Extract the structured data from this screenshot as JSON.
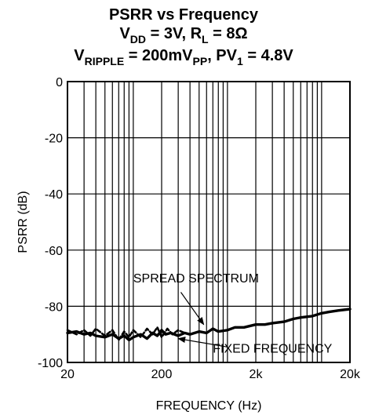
{
  "chart_data": {
    "type": "line",
    "title_lines": [
      {
        "parts": [
          {
            "t": "PSRR vs Frequency"
          }
        ]
      },
      {
        "parts": [
          {
            "t": "V"
          },
          {
            "t": "DD",
            "sub": true
          },
          {
            "t": " = 3V, R"
          },
          {
            "t": "L",
            "sub": true
          },
          {
            "t": " = 8Ω"
          }
        ]
      },
      {
        "parts": [
          {
            "t": "V"
          },
          {
            "t": "RIPPLE",
            "sub": true
          },
          {
            "t": " = 200mV"
          },
          {
            "t": "PP",
            "sub": true
          },
          {
            "t": ", PV"
          },
          {
            "t": "1",
            "sub": true
          },
          {
            "t": " = 4.8V"
          }
        ]
      }
    ],
    "xlabel": "FREQUENCY (Hz)",
    "ylabel": "PSRR (dB)",
    "x_scale": "log",
    "xlim": [
      20,
      20000
    ],
    "ylim": [
      -100,
      0
    ],
    "x_ticks": [
      {
        "value": 20,
        "label": "20"
      },
      {
        "value": 200,
        "label": "200"
      },
      {
        "value": 2000,
        "label": "2k"
      },
      {
        "value": 20000,
        "label": "20k"
      }
    ],
    "y_ticks": [
      {
        "value": 0,
        "label": "0"
      },
      {
        "value": -20,
        "label": "-20"
      },
      {
        "value": -40,
        "label": "-40"
      },
      {
        "value": -60,
        "label": "-60"
      },
      {
        "value": -80,
        "label": "-80"
      },
      {
        "value": -100,
        "label": "-100"
      }
    ],
    "grid": true,
    "series": [
      {
        "style": "solid",
        "x": [
          20,
          25,
          30,
          35,
          40,
          50,
          60,
          70,
          80,
          90,
          100,
          120,
          140,
          160,
          180,
          200,
          220,
          250,
          300,
          350,
          400,
          500,
          600,
          700,
          800,
          1000,
          1200,
          1500,
          2000,
          2500,
          3000,
          4000,
          5000,
          6000,
          8000,
          10000,
          12000,
          15000,
          20000
        ],
        "y": [
          -89.5,
          -89,
          -90,
          -89.5,
          -90.5,
          -91,
          -90,
          -91.5,
          -90.5,
          -92,
          -91,
          -90,
          -91.5,
          -89.5,
          -90.5,
          -88.5,
          -90,
          -89.5,
          -90.5,
          -89.5,
          -90,
          -89,
          -89.5,
          -88,
          -89,
          -88.5,
          -87.5,
          -87.5,
          -86.5,
          -86.5,
          -86,
          -85.5,
          -84.5,
          -84,
          -83.5,
          -82.5,
          -82,
          -81.5,
          -81
        ]
      },
      {
        "style": "dashed",
        "x": [
          20,
          25,
          30,
          35,
          40,
          50,
          60,
          70,
          80,
          90,
          100,
          120,
          140,
          160,
          180,
          200,
          230,
          260,
          300,
          350
        ],
        "y": [
          -88.5,
          -90,
          -88.5,
          -90.5,
          -88,
          -90.5,
          -88.5,
          -92,
          -89,
          -91,
          -88.5,
          -91,
          -88,
          -90,
          -87.5,
          -91,
          -88,
          -90,
          -88.5,
          -89.5
        ]
      }
    ],
    "annotations": [
      {
        "text": "SPREAD SPECTRUM",
        "text_at": [
          100,
          -71.5
        ],
        "arrow_from": [
          320,
          -75
        ],
        "arrow_to": [
          560,
          -86.5
        ]
      },
      {
        "text": "FIXED FREQUENCY",
        "text_at": [
          700,
          -96.5
        ],
        "arrow_from": [
          1000,
          -94.5
        ],
        "arrow_to": [
          300,
          -91.5
        ]
      }
    ]
  }
}
